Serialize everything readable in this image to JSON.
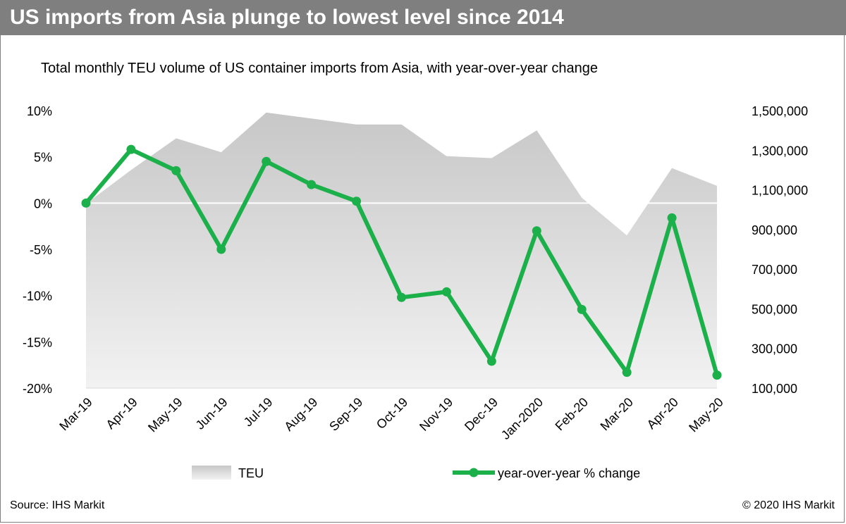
{
  "header": {
    "title": "US imports from Asia plunge to lowest level since 2014"
  },
  "footer": {
    "source": "Source: IHS Markit",
    "copyright": "© 2020 IHS Markit"
  },
  "colors": {
    "title_bar": "#7f7f7f",
    "line": "#1bb04a",
    "area_top": "#c8c7c8",
    "area_bottom": "#f2f2f2"
  },
  "chart_data": {
    "type": "line",
    "subtitle": "Total monthly TEU volume of US container imports from Asia, with year-over-year change",
    "categories": [
      "Mar-19",
      "Apr-19",
      "May-19",
      "Jun-19",
      "Jul-19",
      "Aug-19",
      "Sep-19",
      "Oct-19",
      "Nov-19",
      "Dec-19",
      "Jan-2020",
      "Feb-20",
      "Mar-20",
      "Apr-20",
      "May-20"
    ],
    "series": [
      {
        "name": "TEU",
        "chart_kind": "area",
        "axis": "right",
        "values": [
          1030000,
          1200000,
          1360000,
          1290000,
          1490000,
          1460000,
          1430000,
          1430000,
          1270000,
          1260000,
          1400000,
          1060000,
          870000,
          1210000,
          1120000
        ]
      },
      {
        "name": "year-over-year % change",
        "chart_kind": "line",
        "axis": "left",
        "values": [
          0.0,
          5.8,
          3.5,
          -5.0,
          4.5,
          2.0,
          0.2,
          -10.2,
          -9.6,
          -17.1,
          -3.0,
          -11.5,
          -18.3,
          -1.6,
          -18.6
        ]
      }
    ],
    "left_axis": {
      "ylim": [
        -20,
        10
      ],
      "ticks": [
        10,
        5,
        0,
        -5,
        -10,
        -15,
        -20
      ],
      "tick_labels": [
        "10%",
        "5%",
        "0%",
        "-5%",
        "-10%",
        "-15%",
        "-20%"
      ]
    },
    "right_axis": {
      "ylim": [
        100000,
        1500000
      ],
      "ticks": [
        1500000,
        1300000,
        1100000,
        900000,
        700000,
        500000,
        300000,
        100000
      ],
      "tick_labels": [
        "1,500,000",
        "1,300,000",
        "1,100,000",
        "900,000",
        "700,000",
        "500,000",
        "300,000",
        "100,000"
      ]
    },
    "legend": {
      "placement": "bottom",
      "items": [
        "TEU",
        "year-over-year % change"
      ]
    },
    "grid": false
  }
}
